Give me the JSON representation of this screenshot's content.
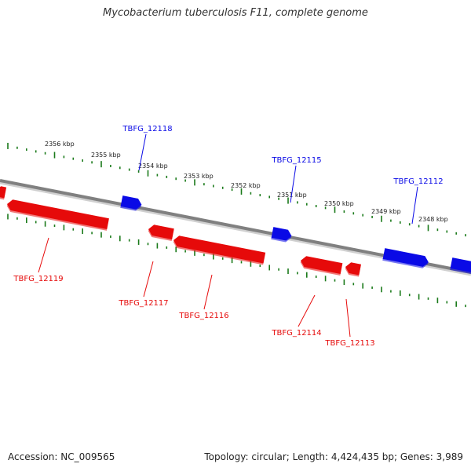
{
  "title": "Mycobacterium tuberculosis F11, complete genome",
  "accession": "Accession: NC_009565",
  "topology": "Topology: circular; Length: 4,424,435 bp; Genes: 3,989",
  "colors": {
    "forward": "#0a0ae6",
    "reverse": "#e60a0a",
    "ticks": "#1a7a1a",
    "backbone": "#808080"
  },
  "ticks": [
    {
      "label": "2356 kbp"
    },
    {
      "label": "2355 kbp"
    },
    {
      "label": "2354 kbp"
    },
    {
      "label": "2353 kbp"
    },
    {
      "label": "2352 kbp"
    },
    {
      "label": "2351 kbp"
    },
    {
      "label": "2350 kbp"
    },
    {
      "label": "2349 kbp"
    },
    {
      "label": "2348 kbp"
    }
  ],
  "genes": [
    {
      "name": "TBFG_12118",
      "strand": "forward"
    },
    {
      "name": "TBFG_12115",
      "strand": "forward"
    },
    {
      "name": "TBFG_12112",
      "strand": "forward"
    },
    {
      "name": "TBFG_12119",
      "strand": "reverse"
    },
    {
      "name": "TBFG_12117",
      "strand": "reverse"
    },
    {
      "name": "TBFG_12116",
      "strand": "reverse"
    },
    {
      "name": "TBFG_12114",
      "strand": "reverse"
    },
    {
      "name": "TBFG_12113",
      "strand": "reverse"
    }
  ]
}
